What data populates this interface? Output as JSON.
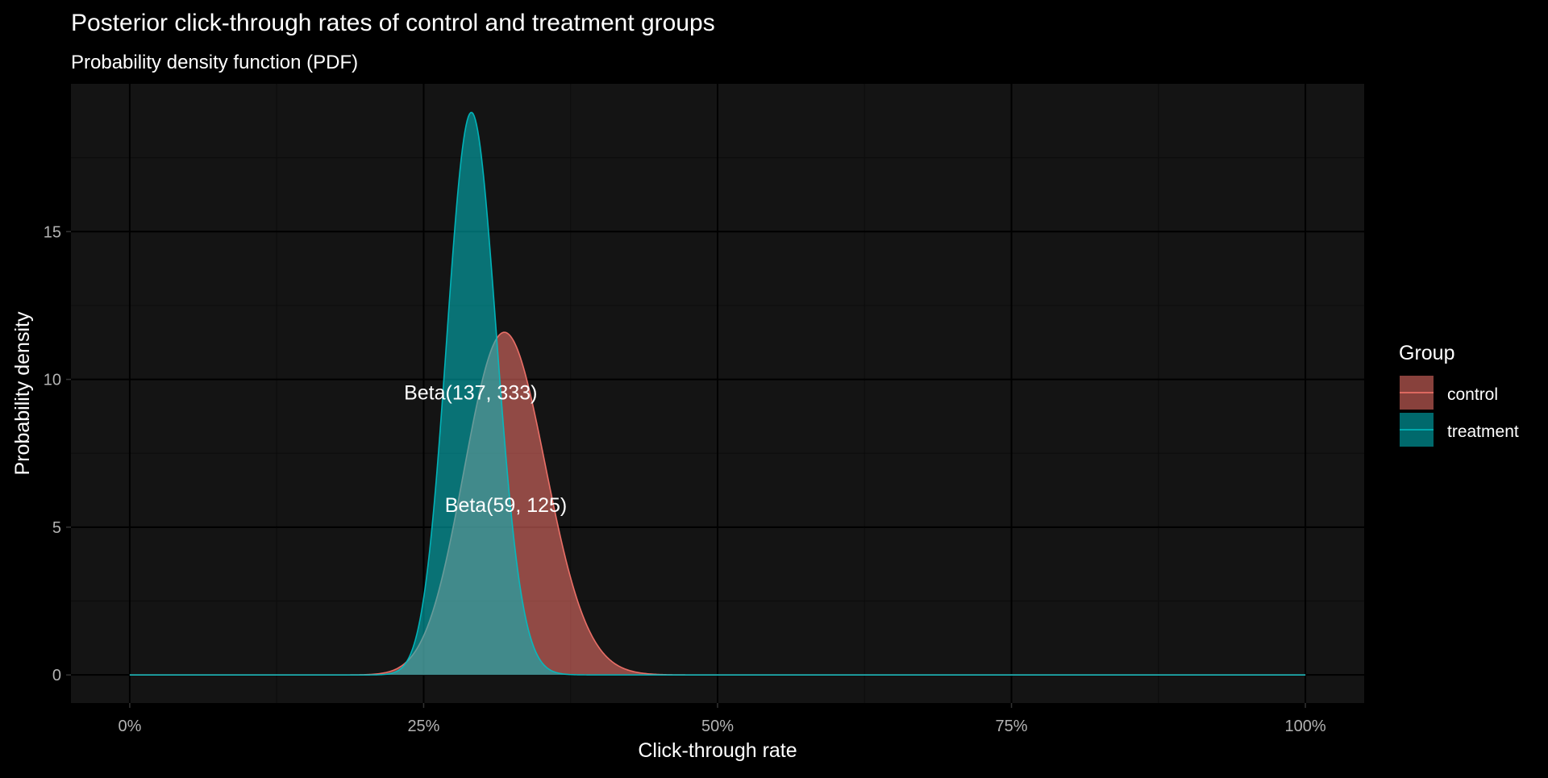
{
  "chart_data": {
    "type": "area",
    "title": "Posterior click-through rates of control and treatment groups",
    "subtitle": "Probability density function (PDF)",
    "xlabel": "Click-through rate",
    "ylabel": "Probability density",
    "xlim": [
      -0.05,
      1.05
    ],
    "ylim": [
      -0.95,
      20.0
    ],
    "x_ticks": [
      {
        "value": 0.0,
        "label": "0%"
      },
      {
        "value": 0.25,
        "label": "25%"
      },
      {
        "value": 0.5,
        "label": "50%"
      },
      {
        "value": 0.75,
        "label": "75%"
      },
      {
        "value": 1.0,
        "label": "100%"
      }
    ],
    "y_ticks": [
      {
        "value": 0,
        "label": "0"
      },
      {
        "value": 5,
        "label": "5"
      },
      {
        "value": 10,
        "label": "10"
      },
      {
        "value": 15,
        "label": "15"
      }
    ],
    "grid": true,
    "legend": {
      "title": "Group",
      "position": "right"
    },
    "series": [
      {
        "name": "control",
        "distribution": "beta",
        "alpha": 59,
        "beta": 125,
        "fill": "#F8766D",
        "fill_opacity": 0.55,
        "line": "#F8766D",
        "label": "Beta(59, 125)",
        "label_position": {
          "x": 0.32,
          "y": 5.7
        }
      },
      {
        "name": "treatment",
        "distribution": "beta",
        "alpha": 137,
        "beta": 333,
        "fill": "#00BFC4",
        "fill_opacity": 0.55,
        "line": "#00BFC4",
        "label": "Beta(137, 333)",
        "label_position": {
          "x": 0.29,
          "y": 9.5
        }
      }
    ],
    "colors": {
      "page_background": "#000000",
      "panel_background": "#141414",
      "grid_major": "#000000",
      "grid_minor": "#0d0d0d",
      "title_text": "#ffffff",
      "tick_text": "#b3b3b3",
      "annotation_text": "#ffffff"
    }
  }
}
